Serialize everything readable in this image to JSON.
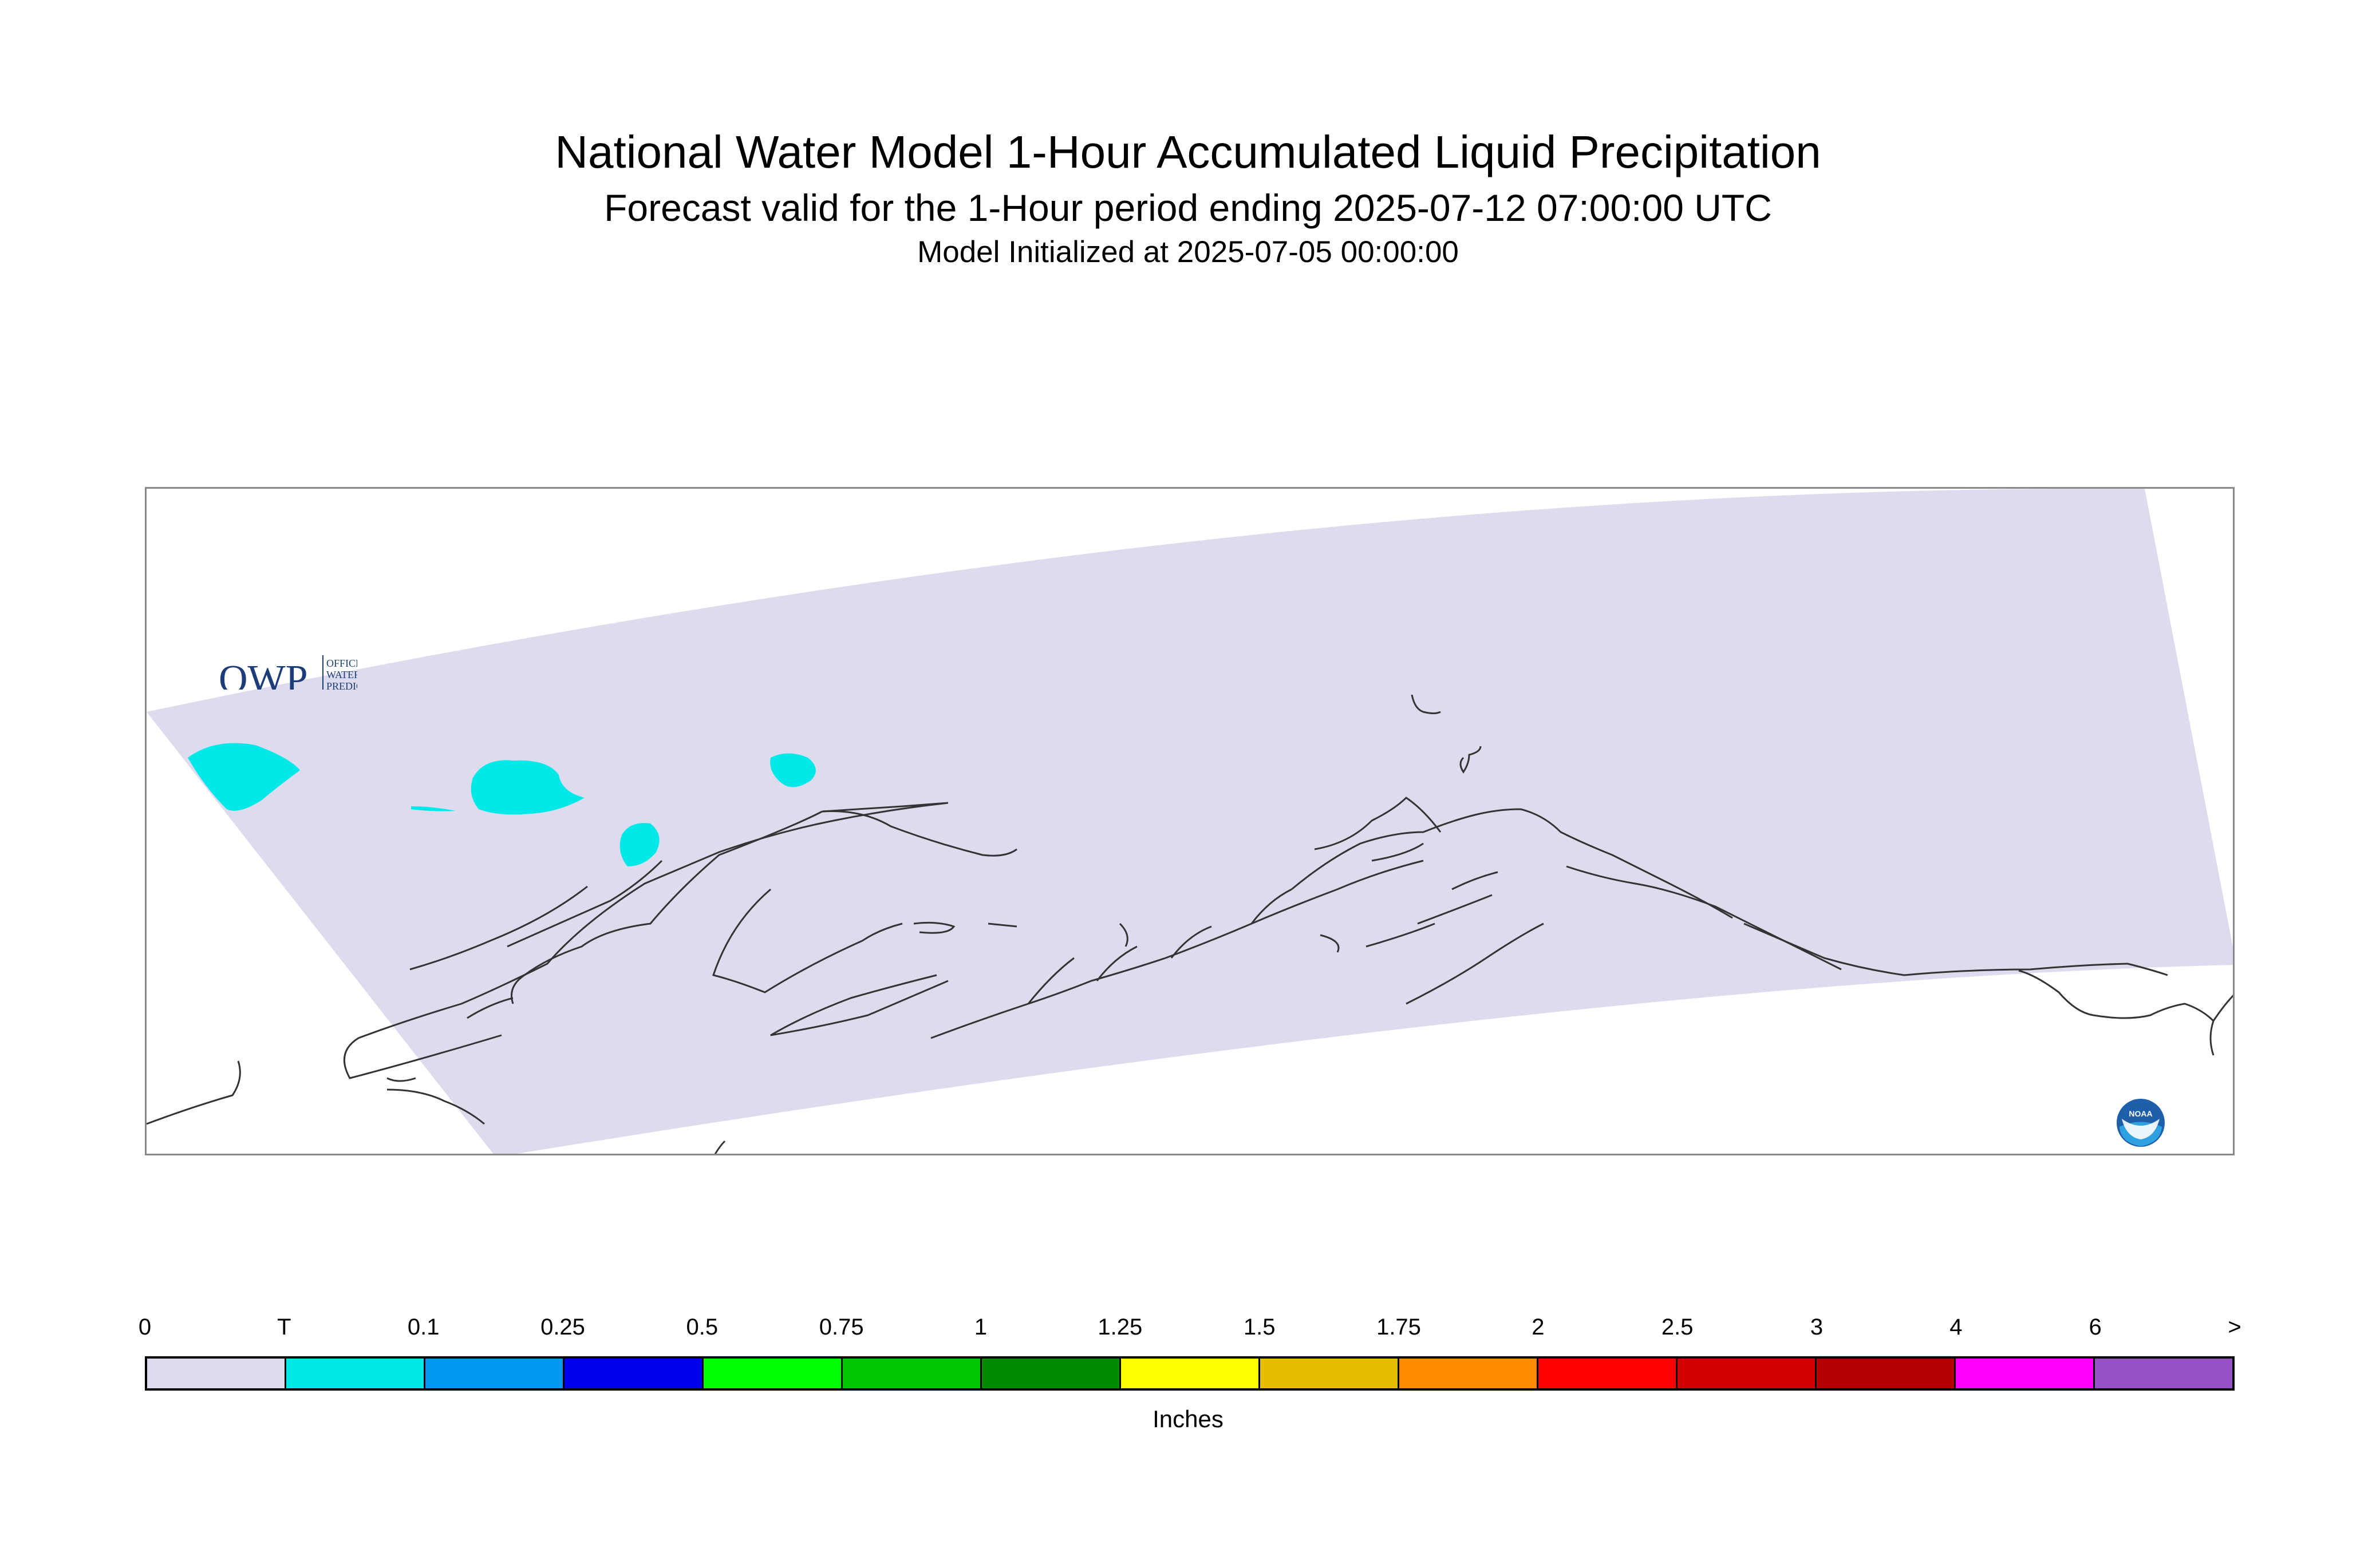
{
  "title": {
    "main": "National Water Model 1-Hour Accumulated Liquid Precipitation",
    "forecast": "Forecast valid for the 1-Hour period ending 2025-07-12 07:00:00 UTC",
    "init": "Model Initialized at 2025-07-05 00:00:00"
  },
  "logos": {
    "owp_mark": "OWP",
    "owp_text": [
      "OFFICE OF",
      "WATER",
      "PREDICTION"
    ],
    "noaa_text": "NOAA"
  },
  "colorbar": {
    "units": "Inches",
    "tick_labels": [
      "0",
      "T",
      "0.1",
      "0.25",
      "0.5",
      "0.75",
      "1",
      "1.25",
      "1.5",
      "1.75",
      "2",
      "2.5",
      "3",
      "4",
      "6",
      ">"
    ],
    "colors": [
      "#dcdcee",
      "#00e8e8",
      "#0098f0",
      "#0000f0",
      "#00ff00",
      "#00c800",
      "#008c00",
      "#ffff00",
      "#e6be00",
      "#ff8c00",
      "#ff0000",
      "#d20000",
      "#b40000",
      "#ff00ff",
      "#9650c8"
    ]
  },
  "map": {
    "domain_fill": "#dcdcee",
    "precip_color": "#00e8e8",
    "coast_color": "#333333"
  }
}
